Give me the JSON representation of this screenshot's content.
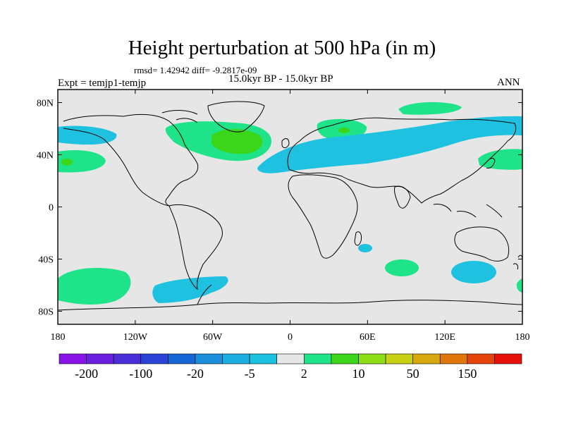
{
  "title": "Height perturbation at 500 hPa (in m)",
  "stats": "rmsd= 1.42942 diff= -9.2817e-09",
  "left_label": "Expt = temjp1-temjp",
  "center_label": "15.0kyr BP - 15.0kyr BP",
  "right_label": "ANN",
  "chart_data": {
    "type": "heatmap",
    "projection": "cylindrical-equidistant",
    "xlim": [
      -180,
      180
    ],
    "ylim": [
      -90,
      90
    ],
    "x_ticks": [
      {
        "value": -180,
        "label": "180"
      },
      {
        "value": -120,
        "label": "120W"
      },
      {
        "value": -60,
        "label": "60W"
      },
      {
        "value": 0,
        "label": "0"
      },
      {
        "value": 60,
        "label": "60E"
      },
      {
        "value": 120,
        "label": "120E"
      },
      {
        "value": 180,
        "label": "180"
      }
    ],
    "y_ticks": [
      {
        "value": 80,
        "label": "80N"
      },
      {
        "value": 40,
        "label": "40N"
      },
      {
        "value": 0,
        "label": "0"
      },
      {
        "value": -40,
        "label": "40S"
      },
      {
        "value": -80,
        "label": "80S"
      }
    ],
    "colorbar": {
      "levels": [
        "-200",
        "-100",
        "-20",
        "-5",
        "2",
        "10",
        "50",
        "150"
      ],
      "colors": [
        "#8a13e8",
        "#6a1fe0",
        "#4a2fd8",
        "#2b43d6",
        "#1766d6",
        "#1b8fdc",
        "#1aafe0",
        "#19c2e0",
        "#e6e6e6",
        "#1ee389",
        "#3bd61a",
        "#8fdd14",
        "#c8d113",
        "#d7a90f",
        "#e0760c",
        "#e4440b",
        "#e6110a"
      ]
    },
    "background_color": "#e6e6e6",
    "regions": [
      {
        "name": "north-pacific-west-negative",
        "lon": -165,
        "lat": 60,
        "value_class": "-5 to 2",
        "color": "#1ec2e0"
      },
      {
        "name": "north-atlantic-positive",
        "lon": -45,
        "lat": 52,
        "value_class": "2 to 10",
        "color": "#1ee389"
      },
      {
        "name": "north-atlantic-core",
        "lon": -35,
        "lat": 50,
        "value_class": "10 to 50",
        "color": "#3bd61a"
      },
      {
        "name": "eurasia-negative-band",
        "lon": 70,
        "lat": 45,
        "value_class": "-5 to 2",
        "color": "#1ec2e0"
      },
      {
        "name": "arctic-positive",
        "lon": 60,
        "lat": 78,
        "value_class": "2 to 10",
        "color": "#1ee389"
      },
      {
        "name": "europe-positive",
        "lon": 45,
        "lat": 60,
        "value_class": "2 to 10",
        "color": "#1ee389"
      },
      {
        "name": "north-pacific-east-positive",
        "lon": -170,
        "lat": 38,
        "value_class": "2 to 10",
        "color": "#1ee389"
      },
      {
        "name": "north-pacific-dateline-positive",
        "lon": 170,
        "lat": 38,
        "value_class": "2 to 10",
        "color": "#1ee389"
      },
      {
        "name": "south-pacific-positive",
        "lon": -160,
        "lat": -55,
        "value_class": "2 to 10",
        "color": "#1ee389"
      },
      {
        "name": "southern-ocean-negative",
        "lon": -70,
        "lat": -62,
        "value_class": "-5 to 2",
        "color": "#1ec2e0"
      },
      {
        "name": "indian-ocean-positive",
        "lon": 85,
        "lat": -45,
        "value_class": "2 to 10",
        "color": "#1ee389"
      },
      {
        "name": "south-of-australia-negative",
        "lon": 140,
        "lat": -50,
        "value_class": "-5 to 2",
        "color": "#1ec2e0"
      },
      {
        "name": "south-atlantic-small-negative",
        "lon": 60,
        "lat": -30,
        "value_class": "-5 to 2",
        "color": "#1ec2e0"
      }
    ]
  }
}
